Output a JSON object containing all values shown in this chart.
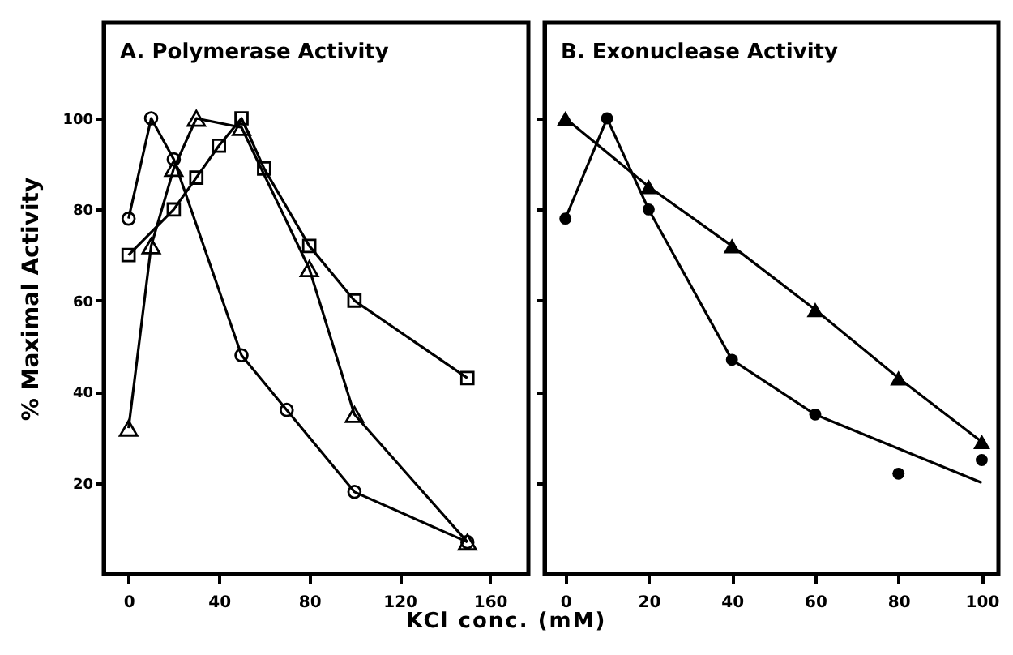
{
  "chart_data": [
    {
      "type": "line",
      "title": "A.  Polymerase Activity",
      "ylabel": "% Maximal Activity",
      "xlabel": "KCl conc. (mM)",
      "xlim": [
        -11,
        177
      ],
      "xticks": [
        0,
        40,
        80,
        120,
        160
      ],
      "ylim": [
        0,
        121
      ],
      "yticks": [
        20,
        40,
        60,
        80,
        100
      ],
      "series": [
        {
          "color": "#000000",
          "marker": "circle",
          "x": [
            0,
            10,
            20,
            50,
            70,
            100,
            150
          ],
          "values": [
            78,
            100,
            91,
            48,
            36,
            18,
            7
          ]
        },
        {
          "color": "#000000",
          "marker": "triangle",
          "x": [
            0,
            10,
            20,
            30,
            50,
            80,
            100,
            150
          ],
          "values": [
            32,
            72,
            89,
            100,
            98,
            67,
            35,
            7
          ]
        },
        {
          "color": "#000000",
          "marker": "square",
          "x": [
            0,
            20,
            30,
            40,
            50,
            60,
            80,
            100,
            150
          ],
          "values": [
            70,
            80,
            87,
            94,
            100,
            89,
            72,
            60,
            43
          ]
        }
      ]
    },
    {
      "type": "line",
      "title": "B.  Exonuclease Activity",
      "tick_labels": "x",
      "xlim": [
        -5,
        104
      ],
      "xticks": [
        0,
        20,
        40,
        60,
        80,
        100
      ],
      "ylim": [
        0,
        121
      ],
      "yticks": [
        20,
        40,
        60,
        80,
        100
      ],
      "series": [
        {
          "color": "#000000",
          "marker": "triangle",
          "x": [
            0,
            20,
            40,
            60,
            80,
            100
          ],
          "values": [
            100,
            85,
            72,
            58,
            43,
            29
          ]
        },
        {
          "type": "scatter",
          "color": "#000000",
          "marker": "circle",
          "x": [
            0,
            10,
            20,
            40,
            60,
            80,
            100
          ],
          "values": [
            78,
            100,
            80,
            47,
            35,
            22,
            25
          ]
        },
        {
          "type": "line",
          "color": "#000000",
          "marker": "none",
          "x": [
            0,
            10,
            20,
            40,
            60,
            100
          ],
          "values": [
            78,
            100,
            80,
            47,
            35,
            20
          ]
        }
      ]
    }
  ]
}
